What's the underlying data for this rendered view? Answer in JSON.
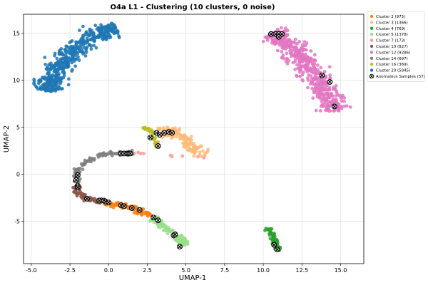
{
  "chart_data": {
    "type": "scatter",
    "title": "O4a L1 - Clustering (10 clusters, 0 noise)",
    "xlabel": "UMAP-1",
    "ylabel": "UMAP-2",
    "xlim": [
      -5.5,
      16.5
    ],
    "ylim": [
      -9.5,
      17
    ],
    "xticks": [
      -5.0,
      -2.5,
      0.0,
      2.5,
      5.0,
      7.5,
      10.0,
      12.5,
      15.0
    ],
    "xtick_labels": [
      "-5.0",
      "-2.5",
      "0.0",
      "2.5",
      "5.0",
      "7.5",
      "10.0",
      "12.5",
      "15.0"
    ],
    "yticks": [
      -5,
      0,
      5,
      10,
      15
    ],
    "ytick_labels": [
      "-5",
      "0",
      "5",
      "10",
      "15"
    ],
    "grid": true,
    "legend_position": "top-right",
    "series": [
      {
        "name": "Cluster 2 (975)",
        "color": "#ff7f0e",
        "path": [
          [
            -0.3,
            -3.0
          ],
          [
            0.5,
            -3.2
          ],
          [
            1.2,
            -3.5
          ],
          [
            2.0,
            -3.9
          ],
          [
            2.7,
            -4.4
          ]
        ],
        "width": 0.45,
        "n": 110
      },
      {
        "name": "Cluster 3 (1366)",
        "color": "#ffbb78",
        "path": [
          [
            3.3,
            4.4
          ],
          [
            4.0,
            4.6
          ],
          [
            4.7,
            4.2
          ],
          [
            5.2,
            3.3
          ],
          [
            5.5,
            2.6
          ],
          [
            6.3,
            2.0
          ]
        ],
        "width": 0.9,
        "n": 150
      },
      {
        "name": "Cluster 4 (769)",
        "color": "#2ca02c",
        "path": [
          [
            10.3,
            -5.7
          ],
          [
            10.6,
            -6.4
          ],
          [
            10.8,
            -7.3
          ],
          [
            11.0,
            -8.1
          ]
        ],
        "width": 0.4,
        "n": 70
      },
      {
        "name": "Cluster 5 (1378)",
        "color": "#98df8a",
        "path": [
          [
            2.8,
            -4.7
          ],
          [
            3.5,
            -5.4
          ],
          [
            4.2,
            -6.3
          ],
          [
            4.7,
            -7.0
          ],
          [
            5.0,
            -7.5
          ]
        ],
        "width": 0.55,
        "n": 110
      },
      {
        "name": "Cluster 7 (173)",
        "color": "#ff9896",
        "path": [
          [
            1.4,
            2.1
          ],
          [
            1.6,
            2.3
          ],
          [
            6.4,
            1.8
          ]
        ],
        "width": 0.2,
        "n": 12
      },
      {
        "name": "Cluster 10 (827)",
        "color": "#8c564b",
        "path": [
          [
            -2.1,
            -1.3
          ],
          [
            -2.0,
            -2.0
          ],
          [
            -1.5,
            -2.5
          ],
          [
            -1.0,
            -2.8
          ],
          [
            -0.3,
            -2.9
          ]
        ],
        "width": 0.45,
        "n": 90
      },
      {
        "name": "Cluster 12 (9286)",
        "color": "#e377c2",
        "path": [
          [
            10.5,
            15.0
          ],
          [
            11.3,
            14.3
          ],
          [
            12.4,
            12.5
          ],
          [
            13.2,
            10.6
          ],
          [
            14.0,
            8.7
          ],
          [
            14.8,
            6.7
          ]
        ],
        "width": 1.6,
        "n": 520
      },
      {
        "name": "Cluster 14 (697)",
        "color": "#7f7f7f",
        "path": [
          [
            -2.1,
            -0.9
          ],
          [
            -2.1,
            0.2
          ],
          [
            -1.5,
            1.3
          ],
          [
            -0.6,
            2.0
          ],
          [
            0.3,
            2.2
          ],
          [
            1.6,
            2.2
          ]
        ],
        "width": 0.4,
        "n": 110
      },
      {
        "name": "Cluster 16 (369)",
        "color": "#bcbd22",
        "path": [
          [
            2.3,
            5.0
          ],
          [
            2.8,
            4.6
          ],
          [
            3.0,
            3.5
          ],
          [
            3.2,
            2.8
          ]
        ],
        "width": 0.25,
        "n": 40
      },
      {
        "name": "Cluster 20 (5945)",
        "color": "#1f77b4",
        "path": [
          [
            -3.9,
            8.8
          ],
          [
            -3.7,
            10.0
          ],
          [
            -3.1,
            11.7
          ],
          [
            -2.1,
            13.5
          ],
          [
            -0.7,
            15.0
          ],
          [
            0.6,
            15.4
          ]
        ],
        "width": 1.5,
        "n": 480
      }
    ],
    "anomalies": {
      "name": "Anomalous Samples (57)",
      "points": [
        [
          10.5,
          14.9
        ],
        [
          10.8,
          14.9
        ],
        [
          11.0,
          14.9
        ],
        [
          11.2,
          14.9
        ],
        [
          11.0,
          14.6
        ],
        [
          13.8,
          10.5
        ],
        [
          14.3,
          9.8
        ],
        [
          14.6,
          7.2
        ],
        [
          3.1,
          4.4
        ],
        [
          3.3,
          4.2
        ],
        [
          3.6,
          4.4
        ],
        [
          3.9,
          4.5
        ],
        [
          4.1,
          4.4
        ],
        [
          3.2,
          3.0
        ],
        [
          2.7,
          3.9
        ],
        [
          0.8,
          2.2
        ],
        [
          1.0,
          2.2
        ],
        [
          1.2,
          2.2
        ],
        [
          1.3,
          2.2
        ],
        [
          1.4,
          2.2
        ],
        [
          -2.0,
          -0.1
        ],
        [
          -2.1,
          -0.6
        ],
        [
          -2.0,
          -1.2
        ],
        [
          -2.0,
          -1.4
        ],
        [
          -1.4,
          -2.6
        ],
        [
          -0.6,
          -2.8
        ],
        [
          -0.3,
          -2.8
        ],
        [
          -0.2,
          -2.9
        ],
        [
          0.0,
          -3.0
        ],
        [
          0.8,
          -3.3
        ],
        [
          1.0,
          -3.4
        ],
        [
          1.5,
          -3.6
        ],
        [
          2.0,
          -3.8
        ],
        [
          2.9,
          -4.6
        ],
        [
          3.2,
          -4.9
        ],
        [
          4.2,
          -6.5
        ],
        [
          4.3,
          -6.4
        ],
        [
          4.6,
          -7.7
        ],
        [
          10.7,
          -7.5
        ],
        [
          10.9,
          -8.0
        ]
      ]
    }
  }
}
